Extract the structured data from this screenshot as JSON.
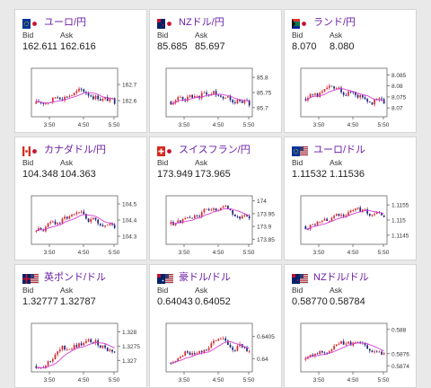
{
  "labels": {
    "bid": "Bid",
    "ask": "Ask"
  },
  "colors": {
    "up": "#d7282f",
    "down": "#20247a",
    "avg": "#d43fd4",
    "title": "#6b1fa6"
  },
  "panels": [
    {
      "name": "ユーロ/円",
      "flag": "eu-jp-flag-icon",
      "bid": "162.611",
      "ask": "162.616",
      "yticks": [
        "162.7",
        "162.6"
      ],
      "ytick_vals": [
        162.7,
        162.6
      ],
      "ylim": [
        162.5,
        162.8
      ],
      "xticks": [
        "3:50",
        "4:50",
        "5:50"
      ],
      "chart_data": {
        "type": "candlestick",
        "start": 162.58,
        "end": 162.57,
        "hi": 162.76,
        "lo": 162.52,
        "ylim": [
          162.5,
          162.8
        ]
      }
    },
    {
      "name": "NZドル/円",
      "flag": "nz-jp-flag-icon",
      "bid": "85.685",
      "ask": "85.697",
      "yticks": [
        "85.8",
        "85.75",
        "85.7"
      ],
      "ytick_vals": [
        85.8,
        85.75,
        85.7
      ],
      "ylim": [
        85.67,
        85.83
      ],
      "xticks": [
        "3:50",
        "4:50",
        "5:50"
      ],
      "chart_data": {
        "type": "candlestick",
        "start": 85.72,
        "end": 85.69,
        "hi": 85.81,
        "lo": 85.68,
        "ylim": [
          85.67,
          85.83
        ]
      }
    },
    {
      "name": "ランド/円",
      "flag": "za-jp-flag-icon",
      "bid": "8.070",
      "ask": "8.080",
      "yticks": [
        "8.085",
        "8.08",
        "8.075",
        "8.07"
      ],
      "ytick_vals": [
        8.085,
        8.08,
        8.075,
        8.07
      ],
      "ylim": [
        8.066,
        8.088
      ],
      "xticks": [
        "3:50",
        "4:50",
        "5:50"
      ],
      "chart_data": {
        "type": "candlestick",
        "start": 8.074,
        "end": 8.069,
        "hi": 8.086,
        "lo": 8.067,
        "ylim": [
          8.066,
          8.088
        ]
      }
    },
    {
      "name": "カナダドル/円",
      "flag": "ca-jp-flag-icon",
      "bid": "104.348",
      "ask": "104.363",
      "yticks": [
        "104.5",
        "104.4",
        "104.3"
      ],
      "ytick_vals": [
        104.5,
        104.4,
        104.3
      ],
      "ylim": [
        104.25,
        104.55
      ],
      "xticks": [
        "3:50",
        "4:50",
        "5:50"
      ],
      "chart_data": {
        "type": "candlestick",
        "start": 104.33,
        "end": 104.36,
        "hi": 104.51,
        "lo": 104.28,
        "ylim": [
          104.25,
          104.55
        ]
      }
    },
    {
      "name": "スイスフラン/円",
      "flag": "ch-jp-flag-icon",
      "bid": "173.949",
      "ask": "173.965",
      "yticks": [
        "174",
        "173.95",
        "173.9",
        "173.85"
      ],
      "ytick_vals": [
        174,
        173.95,
        173.9,
        173.85
      ],
      "ylim": [
        173.83,
        174.02
      ],
      "xticks": [
        "3:50",
        "4:50",
        "5:50"
      ],
      "chart_data": {
        "type": "candlestick",
        "start": 173.91,
        "end": 173.95,
        "hi": 174.0,
        "lo": 173.86,
        "ylim": [
          173.83,
          174.02
        ]
      }
    },
    {
      "name": "ユーロ/ドル",
      "flag": "eu-us-flag-icon",
      "bid": "1.11532",
      "ask": "1.11536",
      "yticks": [
        "1.1155",
        "1.115",
        "1.1145"
      ],
      "ytick_vals": [
        1.1155,
        1.115,
        1.1145
      ],
      "ylim": [
        1.1142,
        1.1158
      ],
      "xticks": [
        "3:50",
        "4:50",
        "5:50"
      ],
      "chart_data": {
        "type": "candlestick",
        "start": 1.1148,
        "end": 1.1153,
        "hi": 1.1156,
        "lo": 1.1145,
        "ylim": [
          1.1142,
          1.1158
        ]
      }
    },
    {
      "name": "英ポンド/ドル",
      "flag": "gb-us-flag-icon",
      "bid": "1.32777",
      "ask": "1.32787",
      "yticks": [
        "1.328",
        "1.3275",
        "1.327"
      ],
      "ytick_vals": [
        1.328,
        1.3275,
        1.327
      ],
      "ylim": [
        1.3266,
        1.3283
      ],
      "xticks": [
        "3:50",
        "4:50",
        "5:50"
      ],
      "chart_data": {
        "type": "candlestick",
        "start": 1.3268,
        "end": 1.3278,
        "hi": 1.3281,
        "lo": 1.3267,
        "ylim": [
          1.3266,
          1.3283
        ]
      }
    },
    {
      "name": "豪ドル/ドル",
      "flag": "au-us-flag-icon",
      "bid": "0.64043",
      "ask": "0.64052",
      "yticks": [
        "0.6405",
        "0.64"
      ],
      "ytick_vals": [
        0.6405,
        0.64
      ],
      "ylim": [
        0.6397,
        0.6408
      ],
      "xticks": [
        "3:50",
        "4:50",
        "5:50"
      ],
      "chart_data": {
        "type": "candlestick",
        "start": 0.6399,
        "end": 0.6404,
        "hi": 0.6407,
        "lo": 0.6398,
        "ylim": [
          0.6397,
          0.6408
        ]
      }
    },
    {
      "name": "NZドル/ドル",
      "flag": "nz-us-flag-icon",
      "bid": "0.58770",
      "ask": "0.58784",
      "yticks": [
        "0.588",
        "0.5876",
        "0.5874"
      ],
      "ytick_vals": [
        0.588,
        0.5876,
        0.5874
      ],
      "ylim": [
        0.5873,
        0.5881
      ],
      "xticks": [
        "3:50",
        "4:50",
        "5:50"
      ],
      "chart_data": {
        "type": "candlestick",
        "start": 0.5875,
        "end": 0.5877,
        "hi": 0.588,
        "lo": 0.5874,
        "ylim": [
          0.5873,
          0.5881
        ]
      }
    }
  ]
}
